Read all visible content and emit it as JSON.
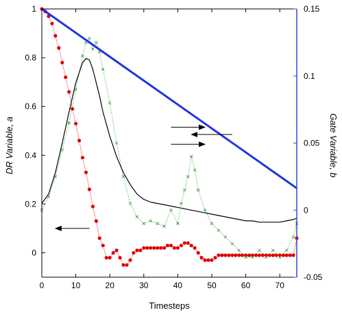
{
  "chart_data": {
    "type": "line",
    "xlabel": "Timesteps",
    "ylabel_left": "DR Variable, a",
    "ylabel_right": "Gate Variable, b",
    "xlim": [
      0,
      75
    ],
    "ylim_left": [
      -0.1,
      1.0
    ],
    "ylim_right": [
      -0.05,
      0.15
    ],
    "x_ticks": [
      0,
      10,
      20,
      30,
      40,
      50,
      60,
      70
    ],
    "y_ticks_left": [
      0,
      0.2,
      0.4,
      0.6,
      0.8,
      1
    ],
    "y_ticks_right": [
      -0.05,
      0,
      0.05,
      0.1,
      0.15
    ],
    "grid": false,
    "colors": {
      "series_a_dots": "#e00000",
      "series_b_green": "#2a9a2a",
      "series_a_smooth": "#000000",
      "diagonal": "#2233dd",
      "right_axis": "#3344dd",
      "arrows": "#000000"
    },
    "series": [
      {
        "axis": "left",
        "style": "red-dots",
        "x": [
          0,
          1,
          2,
          3,
          4,
          5,
          6,
          7,
          8,
          9,
          10,
          11,
          12,
          13,
          14,
          15,
          16,
          17,
          18,
          19,
          20,
          21,
          22,
          23,
          24,
          25,
          26,
          27,
          28,
          29,
          30,
          31,
          32,
          33,
          34,
          35,
          36,
          37,
          38,
          39,
          40,
          41,
          42,
          43,
          44,
          45,
          46,
          47,
          48,
          49,
          50,
          51,
          52,
          53,
          54,
          55,
          56,
          57,
          58,
          59,
          60,
          61,
          62,
          63,
          64,
          65,
          66,
          67,
          68,
          69,
          70,
          71,
          72,
          73,
          74,
          75
        ],
        "values": [
          1.0,
          0.99,
          0.97,
          0.94,
          0.89,
          0.84,
          0.78,
          0.72,
          0.66,
          0.59,
          0.53,
          0.46,
          0.39,
          0.33,
          0.26,
          0.19,
          0.13,
          0.06,
          0.03,
          -0.02,
          -0.02,
          0.0,
          0.01,
          -0.02,
          -0.05,
          -0.05,
          -0.03,
          0.0,
          0.01,
          0.01,
          0.02,
          0.02,
          0.02,
          0.02,
          0.02,
          0.02,
          0.02,
          0.03,
          0.03,
          0.02,
          0.02,
          0.03,
          0.04,
          0.04,
          0.03,
          0.02,
          0.0,
          -0.02,
          -0.03,
          -0.03,
          -0.03,
          -0.02,
          -0.01,
          -0.01,
          -0.01,
          -0.01,
          -0.01,
          -0.01,
          -0.01,
          -0.01,
          -0.01,
          -0.01,
          -0.01,
          -0.01,
          -0.01,
          -0.01,
          -0.01,
          -0.01,
          -0.01,
          -0.01,
          -0.01,
          -0.01,
          -0.01,
          -0.01,
          -0.01,
          0.06
        ]
      },
      {
        "axis": "right",
        "style": "green-dotted",
        "x": [
          0,
          2,
          4,
          6,
          8,
          10,
          12,
          13,
          14,
          15,
          16,
          17,
          18,
          20,
          22,
          24,
          26,
          28,
          30,
          32,
          34,
          36,
          38,
          40,
          41,
          42,
          43,
          44,
          45,
          46,
          48,
          50,
          52,
          54,
          56,
          58,
          60,
          62,
          64,
          66,
          68,
          70,
          72,
          74,
          75
        ],
        "values": [
          0.0,
          0.01,
          0.025,
          0.045,
          0.065,
          0.09,
          0.115,
          0.125,
          0.128,
          0.12,
          0.125,
          0.118,
          0.105,
          0.08,
          0.05,
          0.025,
          0.005,
          -0.005,
          -0.01,
          -0.008,
          -0.01,
          -0.012,
          0.0,
          -0.01,
          0.005,
          0.015,
          0.025,
          0.04,
          0.03,
          0.015,
          0.0,
          -0.01,
          -0.015,
          -0.02,
          -0.025,
          -0.03,
          -0.035,
          -0.035,
          -0.03,
          -0.035,
          -0.03,
          -0.035,
          -0.03,
          -0.02,
          -0.01
        ]
      },
      {
        "axis": "right",
        "style": "black-line",
        "x": [
          0,
          2,
          4,
          6,
          8,
          10,
          12,
          13,
          14,
          15,
          16,
          17,
          18,
          20,
          22,
          24,
          26,
          28,
          30,
          32,
          34,
          36,
          38,
          40,
          42,
          44,
          46,
          48,
          50,
          52,
          54,
          56,
          58,
          60,
          62,
          64,
          66,
          68,
          70,
          72,
          74,
          75
        ],
        "values": [
          0.005,
          0.012,
          0.028,
          0.05,
          0.073,
          0.095,
          0.11,
          0.113,
          0.112,
          0.105,
          0.095,
          0.085,
          0.073,
          0.055,
          0.04,
          0.028,
          0.019,
          0.012,
          0.008,
          0.006,
          0.005,
          0.004,
          0.003,
          0.002,
          0.001,
          0.0,
          -0.001,
          -0.002,
          -0.003,
          -0.004,
          -0.005,
          -0.006,
          -0.007,
          -0.008,
          -0.008,
          -0.009,
          -0.009,
          -0.009,
          -0.009,
          -0.008,
          -0.007,
          -0.006
        ]
      },
      {
        "axis": "left",
        "style": "blue-thick",
        "x": [
          0,
          75
        ],
        "values": [
          1.0,
          0.265
        ]
      }
    ],
    "arrows": [
      {
        "from": [
          38,
          0.515
        ],
        "to": [
          48,
          0.515
        ],
        "label": ""
      },
      {
        "from": [
          38,
          0.445
        ],
        "to": [
          48,
          0.445
        ],
        "label": ""
      },
      {
        "from": [
          56,
          0.485
        ],
        "to": [
          44,
          0.485
        ],
        "label": ""
      },
      {
        "from": [
          14,
          0.1
        ],
        "to": [
          4,
          0.1
        ],
        "label": ""
      }
    ]
  }
}
